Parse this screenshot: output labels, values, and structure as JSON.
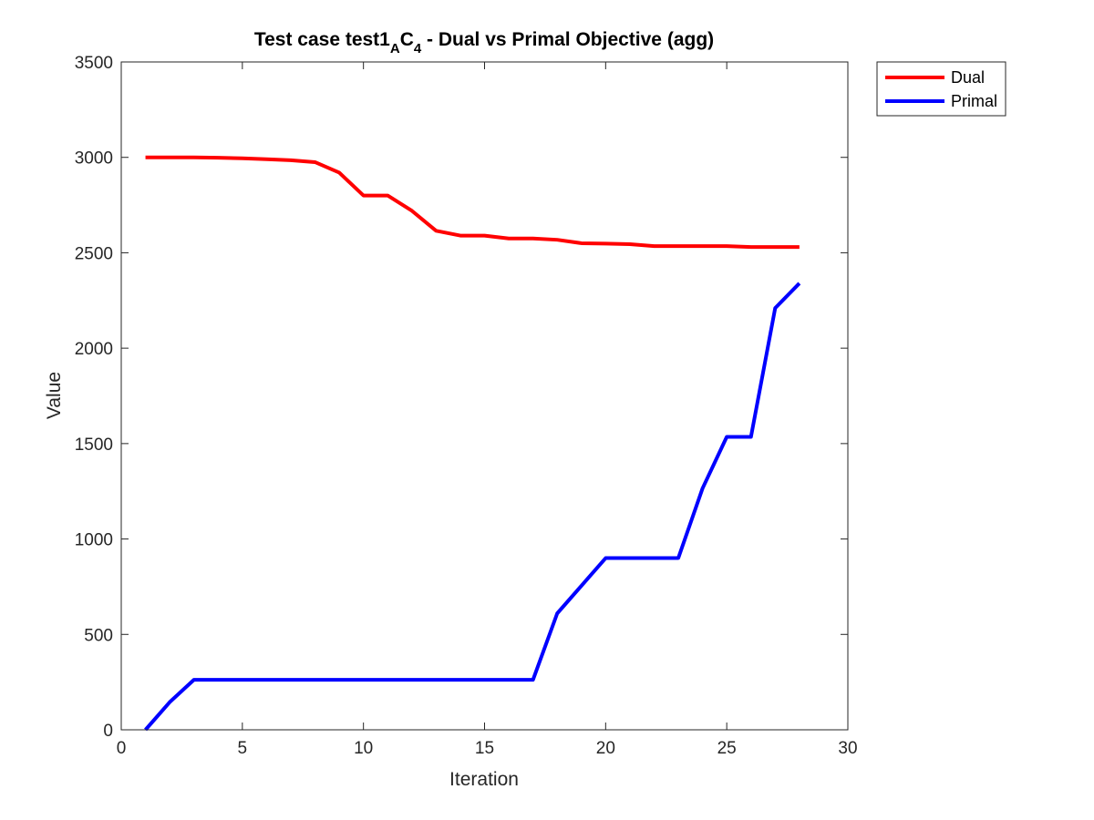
{
  "chart_data": {
    "type": "line",
    "title": {
      "main": "Test case test1",
      "sub1": "A",
      "mid": "C",
      "sub2": "4",
      "rest": " - Dual vs Primal Objective (agg)"
    },
    "xlabel": "Iteration",
    "ylabel": "Value",
    "xlim": [
      0,
      30
    ],
    "ylim": [
      0,
      3500
    ],
    "xticks": [
      0,
      5,
      10,
      15,
      20,
      25,
      30
    ],
    "yticks": [
      0,
      500,
      1000,
      1500,
      2000,
      2500,
      3000,
      3500
    ],
    "grid": false,
    "legend_position": "outside top-right",
    "x": [
      1,
      2,
      3,
      4,
      5,
      6,
      7,
      8,
      9,
      10,
      11,
      12,
      13,
      14,
      15,
      16,
      17,
      18,
      19,
      20,
      21,
      22,
      23,
      24,
      25,
      26,
      27,
      28
    ],
    "series": [
      {
        "name": "Dual",
        "color": "#ff0000",
        "values": [
          3000,
          3000,
          3000,
          2998,
          2995,
          2990,
          2985,
          2975,
          2920,
          2800,
          2800,
          2720,
          2615,
          2590,
          2590,
          2575,
          2575,
          2568,
          2550,
          2548,
          2545,
          2535,
          2535,
          2535,
          2535,
          2530,
          2530,
          2530
        ]
      },
      {
        "name": "Primal",
        "color": "#0000ff",
        "values": [
          0,
          145,
          262,
          262,
          262,
          262,
          262,
          262,
          262,
          262,
          262,
          262,
          262,
          262,
          262,
          262,
          262,
          610,
          755,
          900,
          900,
          900,
          900,
          1265,
          1535,
          1535,
          2210,
          2340
        ]
      }
    ]
  }
}
